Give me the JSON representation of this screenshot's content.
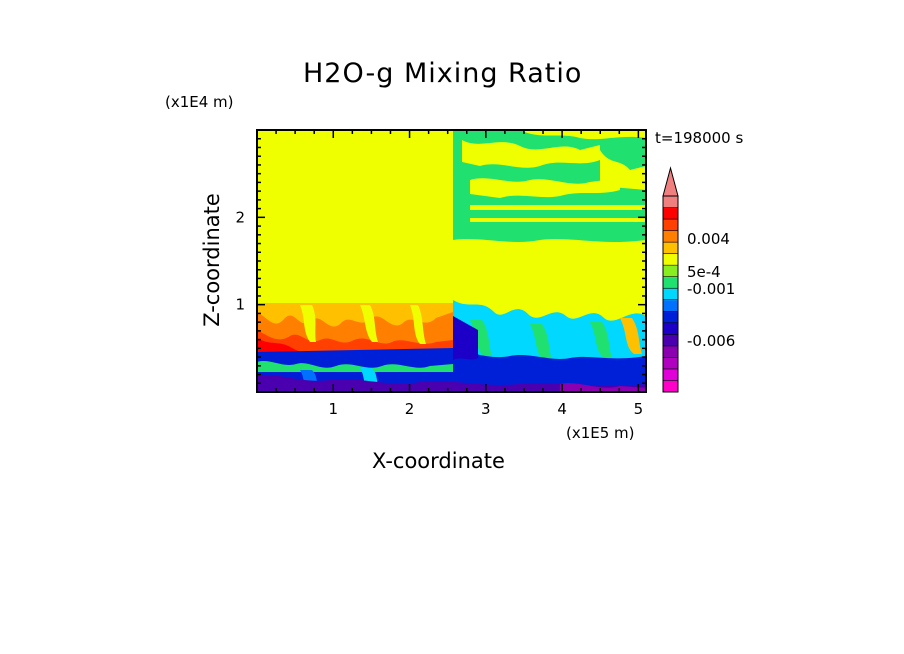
{
  "chart_data": {
    "type": "heatmap",
    "title": "H2O-g Mixing Ratio",
    "time_label": "t=198000 s",
    "xlabel": "X-coordinate",
    "ylabel": "Z-coordinate",
    "x_unit": "(x1E5 m)",
    "y_unit": "(x1E4 m)",
    "xlim": [
      0,
      5.1
    ],
    "ylim": [
      0,
      3.0
    ],
    "x_ticks": [
      "1",
      "2",
      "3",
      "4",
      "5"
    ],
    "y_ticks": [
      "1",
      "2"
    ],
    "colorbar": {
      "extend": "max",
      "labels": [
        "0.004",
        "5e-4",
        "-0.001",
        "-0.006"
      ],
      "levels_bottom_to_top": [
        -0.009,
        -0.008,
        -0.007,
        -0.006,
        -0.005,
        -0.004,
        -0.003,
        -0.002,
        -0.001,
        0.0,
        0.0005,
        0.001,
        0.002,
        0.003,
        0.004,
        0.005,
        0.006
      ],
      "colors_bottom_to_top": [
        "#ff00c8",
        "#e000d8",
        "#b000c0",
        "#8a00b0",
        "#4b00b0",
        "#1c00c8",
        "#0020d8",
        "#0070ff",
        "#00d8ff",
        "#20e070",
        "#88ee20",
        "#f0ff00",
        "#ffc000",
        "#ff8000",
        "#ff4000",
        "#ff0000",
        "#f08080"
      ]
    }
  }
}
